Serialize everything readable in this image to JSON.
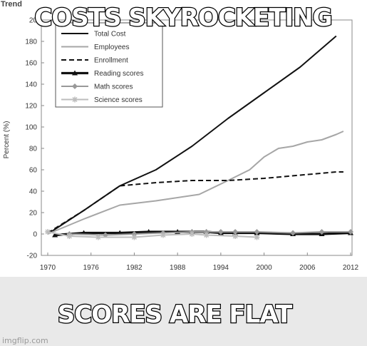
{
  "meme": {
    "top_text": "COSTS SKYROCKETING",
    "bottom_text": "SCORES ARE FLAT",
    "watermark": "imgflip.com"
  },
  "chart_data": {
    "type": "line",
    "title_fragment": "Trend",
    "ylabel": "Percent (%)",
    "xlim": [
      1970,
      2012
    ],
    "ylim": [
      -20,
      200
    ],
    "x_ticks": [
      1970,
      1976,
      1982,
      1988,
      1994,
      2000,
      2006,
      2012
    ],
    "y_ticks": [
      -20,
      0,
      20,
      40,
      60,
      80,
      100,
      120,
      140,
      160,
      180
    ],
    "y_tick_labels": [
      "-20",
      "0",
      "20",
      "40",
      "60",
      "80",
      "100",
      "120",
      "140",
      "160",
      "180"
    ],
    "top_tick_label": "20",
    "legend_position": "top-left",
    "series": [
      {
        "name": "Total Cost",
        "color": "#111111",
        "width": 2,
        "dash": "",
        "marker": "none",
        "x": [
          1970,
          1975,
          1980,
          1985,
          1990,
          1995,
          2000,
          2005,
          2010
        ],
        "y": [
          0,
          22,
          45,
          60,
          82,
          108,
          132,
          156,
          185
        ]
      },
      {
        "name": "Employees",
        "color": "#a6a6a6",
        "width": 2,
        "dash": "",
        "marker": "none",
        "x": [
          1970,
          1975,
          1980,
          1985,
          1991,
          1995,
          1998,
          2000,
          2002,
          2004,
          2006,
          2008,
          2010,
          2011
        ],
        "y": [
          0,
          14,
          27,
          31,
          37,
          50,
          60,
          72,
          80,
          82,
          86,
          88,
          93,
          96
        ]
      },
      {
        "name": "Enrollment",
        "color": "#111111",
        "width": 2,
        "dash": "7 4",
        "marker": "none",
        "x": [
          1970,
          1975,
          1980,
          1985,
          1990,
          1995,
          2000,
          2005,
          2010,
          2011
        ],
        "y": [
          1,
          22,
          45,
          48,
          50,
          50,
          52,
          55,
          58,
          58
        ]
      },
      {
        "name": "Reading scores",
        "color": "#111111",
        "width": 3.2,
        "dash": "",
        "marker": "triangle",
        "x": [
          1971,
          1975,
          1980,
          1984,
          1988,
          1990,
          1992,
          1994,
          1996,
          1999,
          2004,
          2008,
          2012
        ],
        "y": [
          -1,
          1,
          1,
          2,
          2,
          2,
          2,
          1,
          1,
          1,
          0,
          0,
          1
        ]
      },
      {
        "name": "Math scores",
        "color": "#999999",
        "width": 2,
        "dash": "",
        "marker": "diamond",
        "x": [
          1973,
          1978,
          1982,
          1986,
          1990,
          1992,
          1994,
          1996,
          1999,
          2004,
          2008,
          2012
        ],
        "y": [
          0,
          -1,
          0,
          1,
          2,
          2,
          2,
          2,
          2,
          1,
          2,
          2
        ]
      },
      {
        "name": "Science scores",
        "color": "#bdbdbd",
        "width": 2,
        "dash": "",
        "marker": "star",
        "x": [
          1970,
          1973,
          1977,
          1982,
          1986,
          1990,
          1992,
          1996,
          1999
        ],
        "y": [
          2,
          -2,
          -3,
          -3,
          -1,
          0,
          -1,
          -2,
          -3
        ]
      }
    ]
  }
}
